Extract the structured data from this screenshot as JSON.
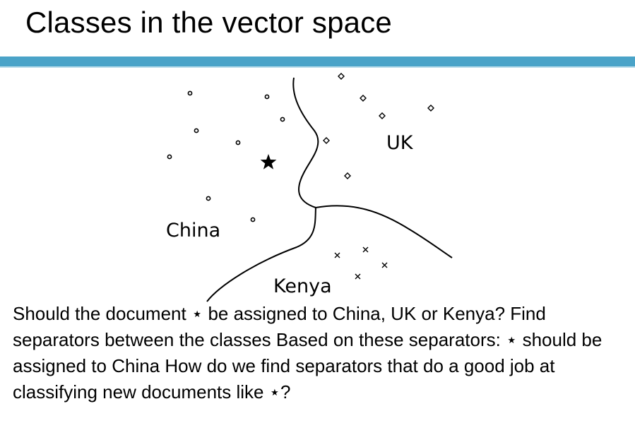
{
  "slide": {
    "title": "Classes in the vector space",
    "accent_color": "#4aa3c8"
  },
  "diagram": {
    "labels": {
      "china": "China",
      "uk": "UK",
      "kenya": "Kenya"
    },
    "markers": {
      "china": "circle",
      "uk": "diamond",
      "kenya": "x",
      "query_document": "star"
    }
  },
  "body": {
    "text": "Should the document ⋆ be assigned to China, UK or Kenya? Find separators between the classes Based on these separators: ⋆ should be assigned to China How do we find separators that do a good job at classifying new documents like ⋆?"
  }
}
